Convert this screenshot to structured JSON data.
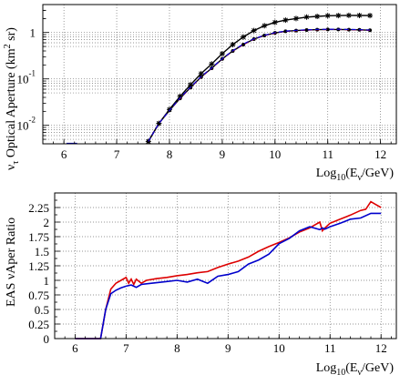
{
  "chart_data": [
    {
      "type": "line",
      "ylabel_main": "ν",
      "ylabel_sub": "τ",
      "ylabel_text": " Optical Aperture (km",
      "ylabel_sup": "2",
      "ylabel_end": " sr)",
      "xlabel_main": "Log",
      "xlabel_sub": "10",
      "xlabel_open": "(E",
      "xlabel_sub2": "ν",
      "xlabel_close": "/GeV)",
      "xlim": [
        5.6,
        12.3
      ],
      "ylim": [
        0.004,
        4
      ],
      "yscale": "log",
      "grid": true,
      "x_ticks": [
        "6",
        "7",
        "8",
        "9",
        "10",
        "11",
        "12"
      ],
      "y_ticks": [
        {
          "v": 1,
          "base": "1",
          "exp": ""
        },
        {
          "v": 0.1,
          "base": "10",
          "exp": "-1"
        },
        {
          "v": 0.01,
          "base": "10",
          "exp": "-2"
        }
      ],
      "series": [
        {
          "color": "#000000",
          "marker": "star",
          "x": [
            7.6,
            7.8,
            8.0,
            8.2,
            8.4,
            8.6,
            8.8,
            9.0,
            9.2,
            9.4,
            9.6,
            9.8,
            10.0,
            10.2,
            10.4,
            10.6,
            10.8,
            11.0,
            11.2,
            11.4,
            11.6,
            11.8
          ],
          "y": [
            0.0045,
            0.011,
            0.022,
            0.042,
            0.075,
            0.13,
            0.21,
            0.35,
            0.55,
            0.8,
            1.1,
            1.4,
            1.65,
            1.85,
            2.0,
            2.15,
            2.22,
            2.3,
            2.32,
            2.34,
            2.33,
            2.32
          ]
        },
        {
          "color": "#000000",
          "marker": "dot",
          "x": [
            7.6,
            7.8,
            8.0,
            8.2,
            8.4,
            8.6,
            8.8,
            9.0,
            9.2,
            9.4,
            9.6,
            9.8,
            10.0,
            10.2,
            10.4,
            10.6,
            10.8,
            11.0,
            11.2,
            11.4,
            11.6,
            11.8
          ],
          "y": [
            0.0045,
            0.011,
            0.021,
            0.038,
            0.065,
            0.11,
            0.17,
            0.27,
            0.4,
            0.55,
            0.72,
            0.86,
            0.98,
            1.06,
            1.1,
            1.13,
            1.15,
            1.16,
            1.16,
            1.15,
            1.14,
            1.12
          ]
        },
        {
          "color": "#dd0000",
          "dash": true,
          "marker": "none",
          "x": [
            7.6,
            7.8,
            8.0,
            8.2,
            8.4,
            8.6,
            8.8,
            9.0,
            9.2,
            9.4,
            9.6,
            9.8,
            10.0,
            10.2,
            10.4,
            10.6,
            10.8,
            11.0,
            11.2,
            11.4,
            11.6,
            11.8
          ],
          "y": [
            0.0045,
            0.011,
            0.021,
            0.038,
            0.065,
            0.11,
            0.17,
            0.27,
            0.4,
            0.55,
            0.72,
            0.86,
            0.98,
            1.06,
            1.1,
            1.13,
            1.15,
            1.16,
            1.16,
            1.15,
            1.14,
            1.12
          ]
        },
        {
          "color": "#0000cc",
          "dash": true,
          "marker": "none",
          "x": [
            7.6,
            7.8,
            8.0,
            8.2,
            8.4,
            8.6,
            8.8,
            9.0,
            9.2,
            9.4,
            9.6,
            9.8,
            10.0,
            10.2,
            10.4,
            10.6,
            10.8,
            11.0,
            11.2,
            11.4,
            11.6,
            11.8
          ],
          "y": [
            0.0045,
            0.011,
            0.021,
            0.039,
            0.066,
            0.112,
            0.172,
            0.272,
            0.405,
            0.56,
            0.73,
            0.87,
            0.99,
            1.07,
            1.11,
            1.14,
            1.16,
            1.17,
            1.17,
            1.16,
            1.15,
            1.13
          ]
        }
      ]
    },
    {
      "type": "line",
      "ylabel": "EAS νAper Ratio",
      "xlabel_main": "Log",
      "xlabel_sub": "10",
      "xlabel_open": "(E",
      "xlabel_sub2": "ν",
      "xlabel_close": "/GeV)",
      "xlim": [
        5.6,
        12.3
      ],
      "ylim": [
        0,
        2.5
      ],
      "grid": true,
      "x_ticks": [
        "6",
        "7",
        "8",
        "9",
        "10",
        "11",
        "12"
      ],
      "y_ticks": [
        "0",
        "0.25",
        "0.5",
        "0.75",
        "1",
        "1.25",
        "1.5",
        "1.75",
        "2",
        "2.25"
      ],
      "series": [
        {
          "color": "#dd0000",
          "x": [
            6.0,
            6.5,
            6.6,
            6.7,
            6.8,
            6.9,
            7.0,
            7.05,
            7.1,
            7.15,
            7.2,
            7.3,
            7.4,
            7.6,
            7.8,
            8.0,
            8.2,
            8.4,
            8.6,
            8.8,
            9.0,
            9.2,
            9.4,
            9.6,
            9.8,
            10.0,
            10.2,
            10.4,
            10.6,
            10.7,
            10.8,
            10.85,
            10.9,
            11.0,
            11.2,
            11.4,
            11.6,
            11.7,
            11.8,
            11.9,
            12.0
          ],
          "y": [
            0,
            0,
            0.5,
            0.85,
            0.95,
            1.0,
            1.05,
            0.95,
            1.02,
            0.93,
            1.02,
            0.95,
            1.0,
            1.03,
            1.05,
            1.08,
            1.1,
            1.13,
            1.15,
            1.22,
            1.28,
            1.33,
            1.4,
            1.5,
            1.58,
            1.65,
            1.73,
            1.83,
            1.9,
            1.95,
            2.0,
            1.85,
            1.9,
            1.98,
            2.05,
            2.12,
            2.2,
            2.22,
            2.35,
            2.3,
            2.25
          ]
        },
        {
          "color": "#0000cc",
          "x": [
            6.0,
            6.5,
            6.6,
            6.7,
            6.8,
            6.9,
            7.0,
            7.1,
            7.2,
            7.3,
            7.4,
            7.6,
            7.8,
            8.0,
            8.2,
            8.4,
            8.6,
            8.8,
            9.0,
            9.2,
            9.4,
            9.6,
            9.8,
            10.0,
            10.2,
            10.4,
            10.6,
            10.8,
            10.85,
            10.9,
            11.0,
            11.2,
            11.4,
            11.6,
            11.8,
            12.0
          ],
          "y": [
            0,
            0,
            0.5,
            0.77,
            0.83,
            0.87,
            0.9,
            0.92,
            0.88,
            0.93,
            0.94,
            0.96,
            0.98,
            1.0,
            0.97,
            1.02,
            0.95,
            1.07,
            1.1,
            1.15,
            1.28,
            1.35,
            1.45,
            1.63,
            1.72,
            1.85,
            1.92,
            1.87,
            1.9,
            1.88,
            1.92,
            1.98,
            2.05,
            2.07,
            2.15,
            2.15
          ]
        }
      ]
    }
  ]
}
